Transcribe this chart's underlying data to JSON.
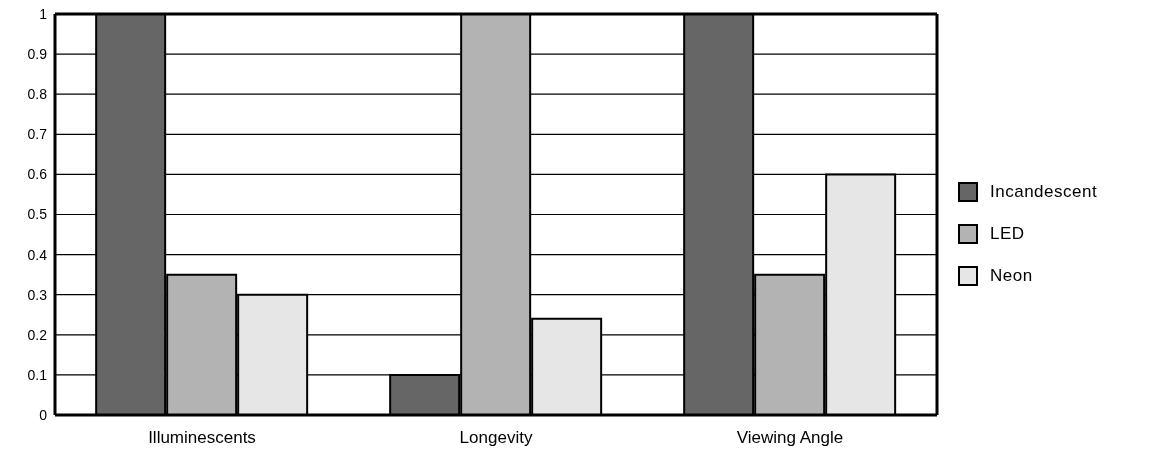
{
  "chart_data": {
    "type": "bar",
    "categories": [
      "Illuminescents",
      "Longevity",
      "Viewing Angle"
    ],
    "series": [
      {
        "name": "Incandescent",
        "color": "#666666",
        "values": [
          1,
          0.1,
          1
        ]
      },
      {
        "name": "LED",
        "color": "#b3b3b3",
        "values": [
          0.35,
          1,
          0.35
        ]
      },
      {
        "name": "Neon",
        "color": "#e6e6e6",
        "values": [
          0.3,
          0.24,
          0.6
        ]
      }
    ],
    "ylim": [
      0,
      1
    ],
    "yticks": [
      0,
      0.1,
      0.2,
      0.3,
      0.4,
      0.5,
      0.6,
      0.7,
      0.8,
      0.9,
      1
    ],
    "grid": "y",
    "legend": "right"
  }
}
